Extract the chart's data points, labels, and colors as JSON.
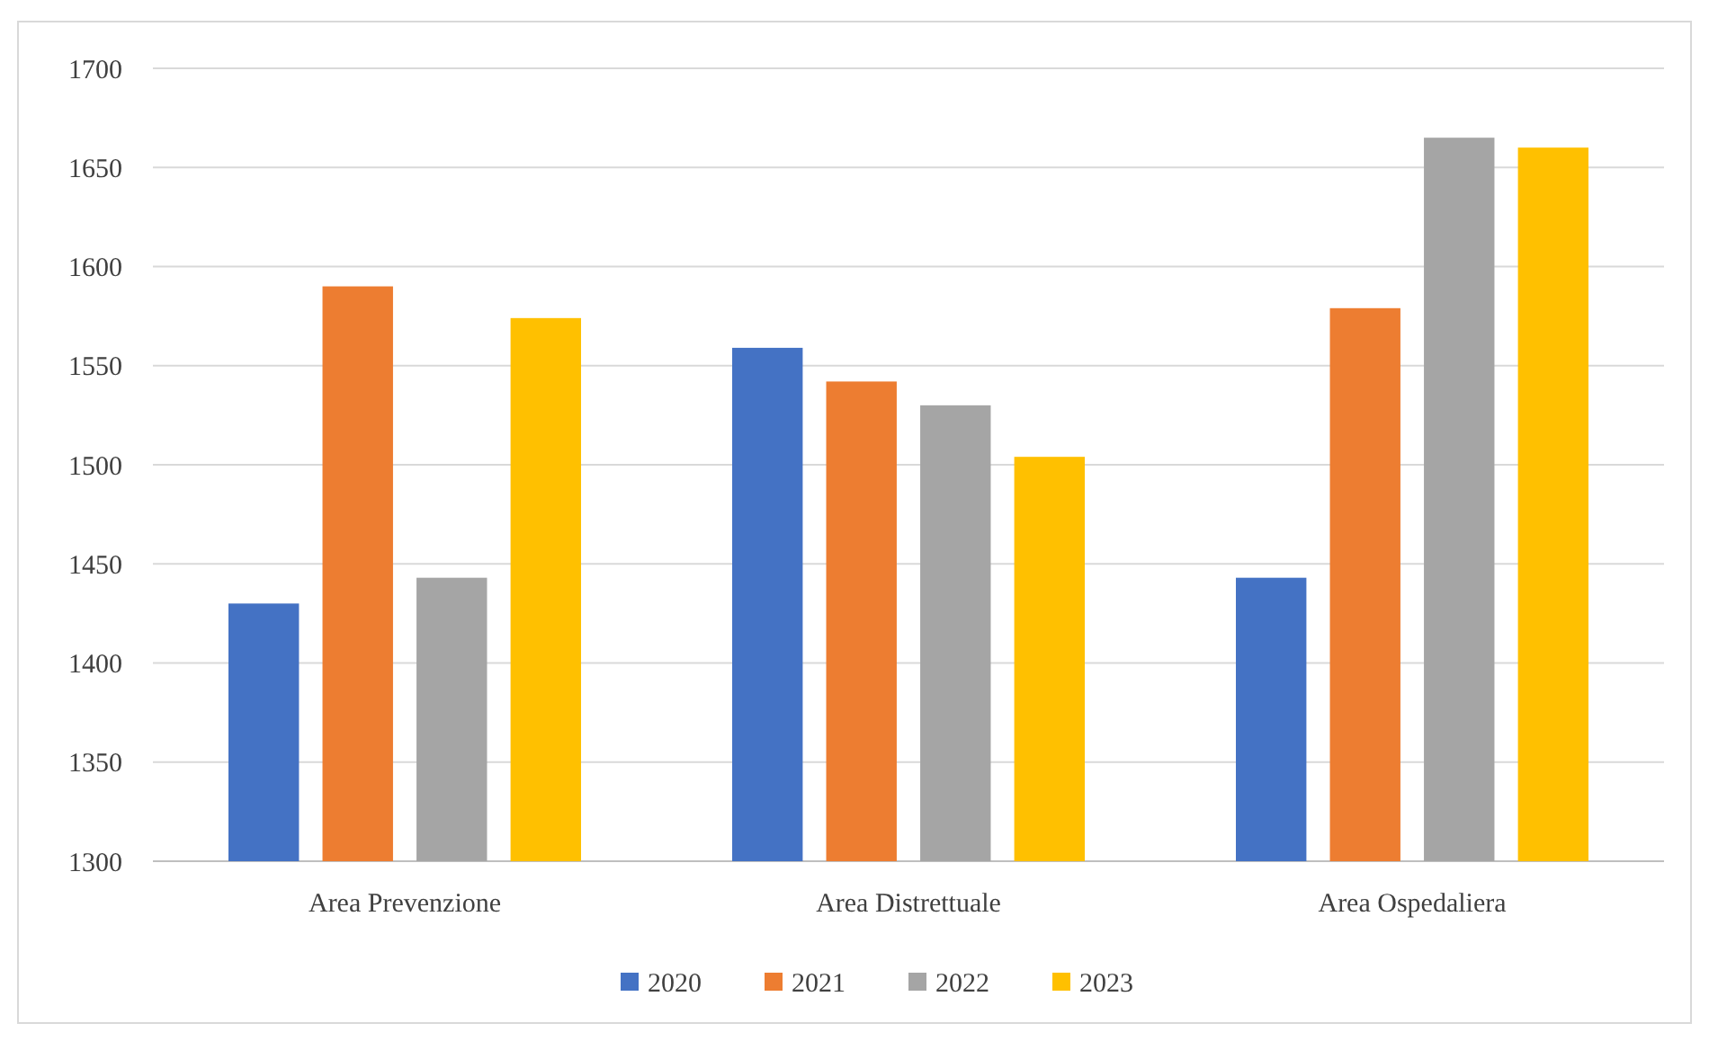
{
  "chart_data": {
    "type": "bar",
    "categories": [
      "Area Prevenzione",
      "Area Distrettuale",
      "Area Ospedaliera"
    ],
    "series": [
      {
        "name": "2020",
        "color": "#4472c4",
        "values": [
          1430,
          1559,
          1443
        ]
      },
      {
        "name": "2021",
        "color": "#ed7d31",
        "values": [
          1590,
          1542,
          1579
        ]
      },
      {
        "name": "2022",
        "color": "#a5a5a5",
        "values": [
          1443,
          1530,
          1665
        ]
      },
      {
        "name": "2023",
        "color": "#ffc000",
        "values": [
          1574,
          1504,
          1660
        ]
      }
    ],
    "ylim": [
      1300,
      1700
    ],
    "yticks": [
      1300,
      1350,
      1400,
      1450,
      1500,
      1550,
      1600,
      1650,
      1700
    ],
    "grid": "y",
    "legend": "bottom"
  }
}
